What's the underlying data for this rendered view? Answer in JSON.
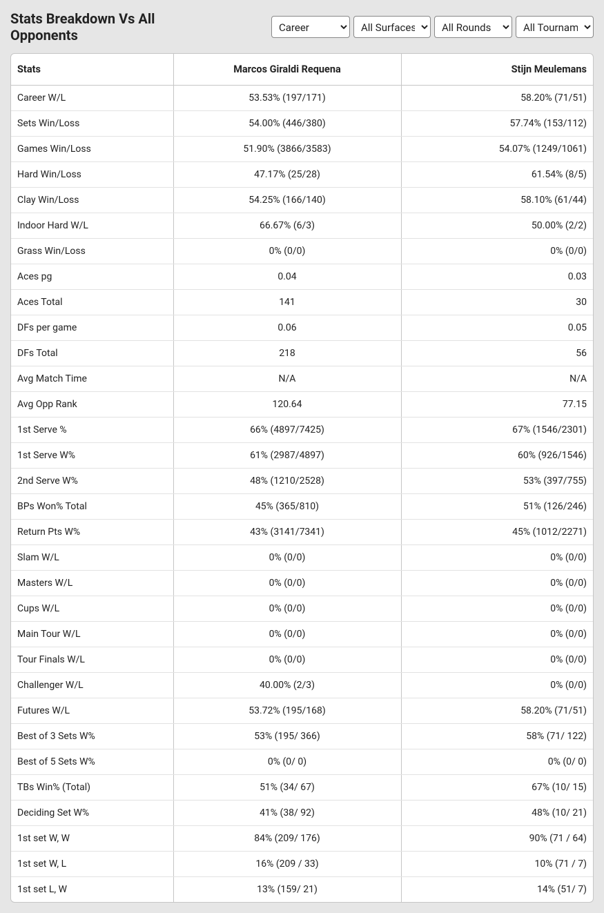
{
  "title": "Stats Breakdown Vs All Opponents",
  "filters": {
    "career": "Career",
    "surface": "All Surfaces",
    "rounds": "All Rounds",
    "tournaments": "All Tournaments"
  },
  "columns": {
    "stats": "Stats",
    "player1": "Marcos Giraldi Requena",
    "player2": "Stijn Meulemans"
  },
  "rows": [
    {
      "stat": "Career W/L",
      "p1": "53.53% (197/171)",
      "p2": "58.20% (71/51)"
    },
    {
      "stat": "Sets Win/Loss",
      "p1": "54.00% (446/380)",
      "p2": "57.74% (153/112)"
    },
    {
      "stat": "Games Win/Loss",
      "p1": "51.90% (3866/3583)",
      "p2": "54.07% (1249/1061)"
    },
    {
      "stat": "Hard Win/Loss",
      "p1": "47.17% (25/28)",
      "p2": "61.54% (8/5)"
    },
    {
      "stat": "Clay Win/Loss",
      "p1": "54.25% (166/140)",
      "p2": "58.10% (61/44)"
    },
    {
      "stat": "Indoor Hard W/L",
      "p1": "66.67% (6/3)",
      "p2": "50.00% (2/2)"
    },
    {
      "stat": "Grass Win/Loss",
      "p1": "0% (0/0)",
      "p2": "0% (0/0)"
    },
    {
      "stat": "Aces pg",
      "p1": "0.04",
      "p2": "0.03"
    },
    {
      "stat": "Aces Total",
      "p1": "141",
      "p2": "30"
    },
    {
      "stat": "DFs per game",
      "p1": "0.06",
      "p2": "0.05"
    },
    {
      "stat": "DFs Total",
      "p1": "218",
      "p2": "56"
    },
    {
      "stat": "Avg Match Time",
      "p1": "N/A",
      "p2": "N/A"
    },
    {
      "stat": "Avg Opp Rank",
      "p1": "120.64",
      "p2": "77.15"
    },
    {
      "stat": "1st Serve %",
      "p1": "66% (4897/7425)",
      "p2": "67% (1546/2301)"
    },
    {
      "stat": "1st Serve W%",
      "p1": "61% (2987/4897)",
      "p2": "60% (926/1546)"
    },
    {
      "stat": "2nd Serve W%",
      "p1": "48% (1210/2528)",
      "p2": "53% (397/755)"
    },
    {
      "stat": "BPs Won% Total",
      "p1": "45% (365/810)",
      "p2": "51% (126/246)"
    },
    {
      "stat": "Return Pts W%",
      "p1": "43% (3141/7341)",
      "p2": "45% (1012/2271)"
    },
    {
      "stat": "Slam W/L",
      "p1": "0% (0/0)",
      "p2": "0% (0/0)"
    },
    {
      "stat": "Masters W/L",
      "p1": "0% (0/0)",
      "p2": "0% (0/0)"
    },
    {
      "stat": "Cups W/L",
      "p1": "0% (0/0)",
      "p2": "0% (0/0)"
    },
    {
      "stat": "Main Tour W/L",
      "p1": "0% (0/0)",
      "p2": "0% (0/0)"
    },
    {
      "stat": "Tour Finals W/L",
      "p1": "0% (0/0)",
      "p2": "0% (0/0)"
    },
    {
      "stat": "Challenger W/L",
      "p1": "40.00% (2/3)",
      "p2": "0% (0/0)"
    },
    {
      "stat": "Futures W/L",
      "p1": "53.72% (195/168)",
      "p2": "58.20% (71/51)"
    },
    {
      "stat": "Best of 3 Sets W%",
      "p1": "53% (195/ 366)",
      "p2": "58% (71/ 122)"
    },
    {
      "stat": "Best of 5 Sets W%",
      "p1": "0% (0/ 0)",
      "p2": "0% (0/ 0)"
    },
    {
      "stat": "TBs Win% (Total)",
      "p1": "51% (34/ 67)",
      "p2": "67% (10/ 15)"
    },
    {
      "stat": "Deciding Set W%",
      "p1": "41% (38/ 92)",
      "p2": "48% (10/ 21)"
    },
    {
      "stat": "1st set W, W",
      "p1": "84% (209/ 176)",
      "p2": "90% (71 / 64)"
    },
    {
      "stat": "1st set W, L",
      "p1": "16% (209 / 33)",
      "p2": "10% (71 / 7)"
    },
    {
      "stat": "1st set L, W",
      "p1": "13% (159/ 21)",
      "p2": "14% (51/ 7)"
    }
  ]
}
